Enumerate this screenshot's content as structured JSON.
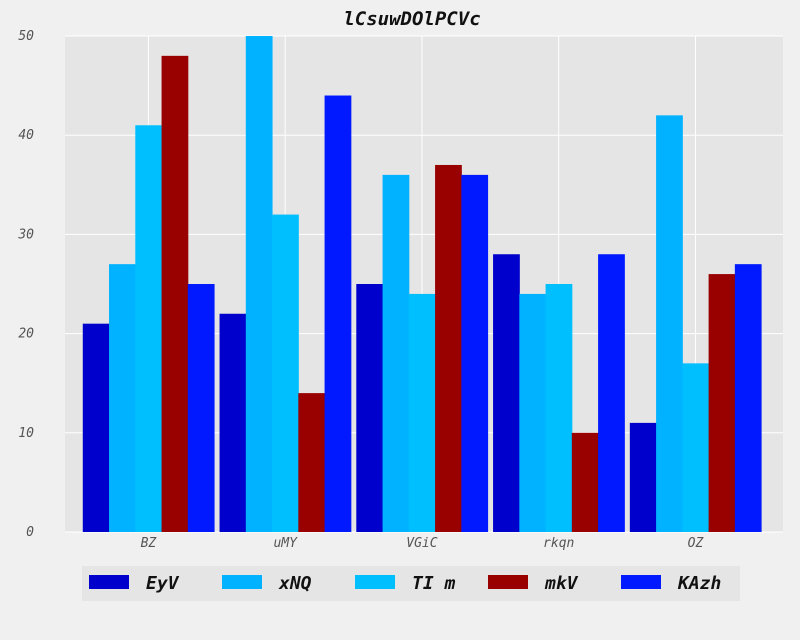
{
  "chart_data": {
    "type": "bar",
    "title": "lCsuwDOlPCVc",
    "xlabel": "",
    "ylabel": "",
    "categories": [
      "BZ",
      "uMY",
      "VGiC",
      "rkqn",
      "OZ"
    ],
    "ylim": [
      0,
      50
    ],
    "yticks": [
      0,
      10,
      20,
      30,
      40,
      50
    ],
    "grid": true,
    "legend_position": "bottom",
    "series": [
      {
        "name": "EyV",
        "color": "#0000cc",
        "values": [
          21,
          22,
          25,
          28,
          11
        ]
      },
      {
        "name": "xNQ",
        "color": "#00b2ff",
        "values": [
          27,
          50,
          36,
          24,
          42
        ]
      },
      {
        "name": "TI m",
        "color": "#00bfff",
        "values": [
          41,
          32,
          24,
          25,
          17
        ]
      },
      {
        "name": "mkV",
        "color": "#990000",
        "values": [
          48,
          14,
          37,
          10,
          26
        ]
      },
      {
        "name": "KAzh",
        "color": "#0019ff",
        "values": [
          25,
          44,
          36,
          28,
          27
        ]
      }
    ]
  }
}
